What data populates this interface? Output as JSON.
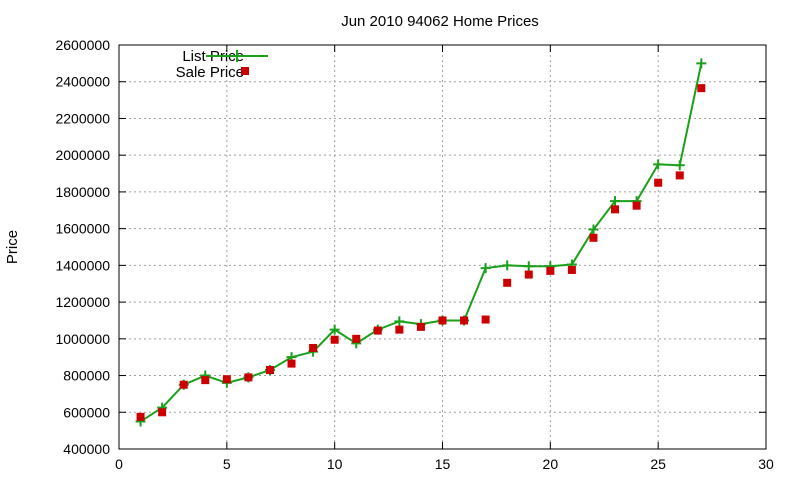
{
  "chart_data": {
    "type": "line",
    "title": "Jun 2010 94062 Home Prices",
    "xlabel": "",
    "ylabel": "Price",
    "xlim": [
      0,
      30
    ],
    "ylim": [
      400000,
      2600000
    ],
    "xticks": [
      0,
      5,
      10,
      15,
      20,
      25,
      30
    ],
    "yticks": [
      400000,
      600000,
      800000,
      1000000,
      1200000,
      1400000,
      1600000,
      1800000,
      2000000,
      2200000,
      2400000,
      2600000
    ],
    "grid": true,
    "legend_position": "top-left",
    "series": [
      {
        "name": "List Price",
        "style": "line-with-plus-markers",
        "color": "#1aa01a",
        "points": [
          [
            1,
            550000
          ],
          [
            2,
            625000
          ],
          [
            3,
            750000
          ],
          [
            4,
            800000
          ],
          [
            5,
            760000
          ],
          [
            6,
            790000
          ],
          [
            7,
            830000
          ],
          [
            8,
            900000
          ],
          [
            9,
            930000
          ],
          [
            10,
            1050000
          ],
          [
            11,
            975000
          ],
          [
            12,
            1050000
          ],
          [
            13,
            1095000
          ],
          [
            14,
            1080000
          ],
          [
            15,
            1100000
          ],
          [
            16,
            1100000
          ],
          [
            17,
            1385000
          ],
          [
            18,
            1400000
          ],
          [
            19,
            1395000
          ],
          [
            20,
            1395000
          ],
          [
            21,
            1405000
          ],
          [
            22,
            1595000
          ],
          [
            23,
            1750000
          ],
          [
            24,
            1750000
          ],
          [
            25,
            1950000
          ],
          [
            26,
            1945000
          ],
          [
            27,
            2500000
          ]
        ]
      },
      {
        "name": "Sale Price",
        "style": "square-markers",
        "color": "#cc0000",
        "points": [
          [
            1,
            575000
          ],
          [
            2,
            600000
          ],
          [
            3,
            750000
          ],
          [
            4,
            775000
          ],
          [
            5,
            780000
          ],
          [
            6,
            790000
          ],
          [
            7,
            830000
          ],
          [
            8,
            865000
          ],
          [
            9,
            950000
          ],
          [
            10,
            995000
          ],
          [
            11,
            1000000
          ],
          [
            12,
            1045000
          ],
          [
            13,
            1050000
          ],
          [
            14,
            1065000
          ],
          [
            15,
            1100000
          ],
          [
            16,
            1100000
          ],
          [
            17,
            1105000
          ],
          [
            18,
            1305000
          ],
          [
            19,
            1350000
          ],
          [
            20,
            1370000
          ],
          [
            21,
            1375000
          ],
          [
            22,
            1550000
          ],
          [
            23,
            1705000
          ],
          [
            24,
            1725000
          ],
          [
            25,
            1850000
          ],
          [
            26,
            1890000
          ],
          [
            27,
            2365000
          ]
        ]
      }
    ]
  }
}
